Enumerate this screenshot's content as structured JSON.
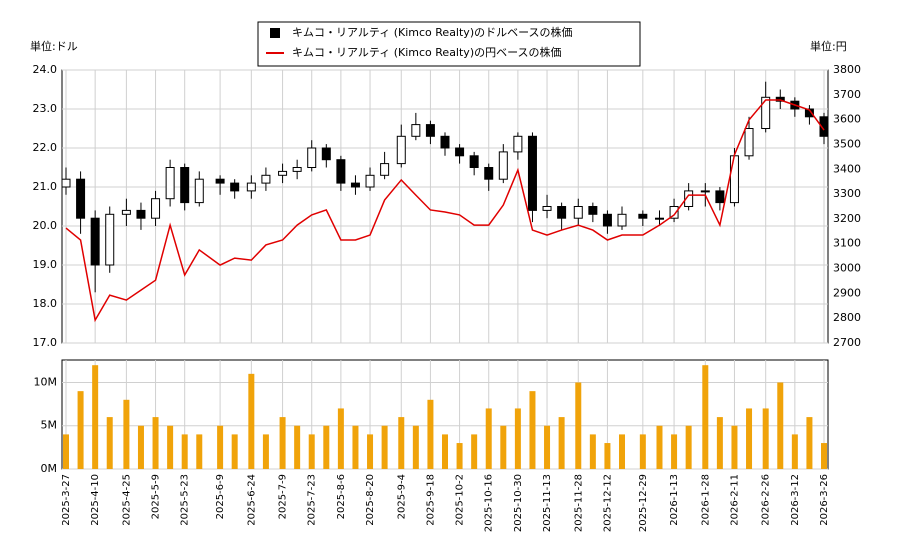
{
  "chart_data": [
    {
      "type": "candlestick",
      "y_label": "単位:ドル",
      "y2_label": "単位:円",
      "legend": "top",
      "grid": true,
      "x": [
        "2025-3-27",
        "2025-4-3",
        "2025-4-10",
        "2025-4-17",
        "2025-4-25",
        "2025-5-2",
        "2025-5-9",
        "2025-5-16",
        "2025-5-23",
        "2025-5-30",
        "2025-6-9",
        "2025-6-16",
        "2025-6-24",
        "2025-7-1",
        "2025-7-9",
        "2025-7-16",
        "2025-7-23",
        "2025-7-30",
        "2025-8-6",
        "2025-8-13",
        "2025-8-20",
        "2025-8-27",
        "2025-9-4",
        "2025-9-11",
        "2025-9-18",
        "2025-9-25",
        "2025-10-2",
        "2025-10-9",
        "2025-10-16",
        "2025-10-23",
        "2025-10-30",
        "2025-11-6",
        "2025-11-13",
        "2025-11-20",
        "2025-11-28",
        "2025-12-5",
        "2025-12-12",
        "2025-12-19",
        "2025-12-29",
        "2026-1-6",
        "2026-1-13",
        "2026-1-20",
        "2026-1-28",
        "2026-2-4",
        "2026-2-11",
        "2026-2-18",
        "2026-2-26",
        "2026-3-5",
        "2026-3-12",
        "2026-3-19",
        "2026-3-26"
      ],
      "series": [
        {
          "name": "キムコ・リアルティ (Kimco Realty)のドルベースの株価",
          "color": "#000000",
          "open": [
            21.0,
            21.2,
            20.2,
            19.0,
            20.3,
            20.4,
            20.2,
            20.7,
            21.5,
            20.6,
            21.2,
            21.1,
            20.9,
            21.1,
            21.3,
            21.4,
            21.5,
            22.0,
            21.7,
            21.1,
            21.0,
            21.3,
            21.6,
            22.3,
            22.6,
            22.3,
            22.0,
            21.8,
            21.5,
            21.2,
            21.9,
            22.3,
            20.4,
            20.5,
            20.2,
            20.5,
            20.3,
            20.0,
            20.3,
            20.2,
            20.2,
            20.5,
            20.9,
            20.9,
            20.6,
            21.8,
            22.5,
            23.3,
            23.2,
            23.0,
            22.8
          ],
          "high": [
            21.5,
            21.4,
            20.4,
            20.5,
            20.7,
            20.6,
            20.9,
            21.7,
            21.6,
            21.4,
            21.3,
            21.2,
            21.3,
            21.5,
            21.6,
            21.7,
            22.2,
            22.1,
            21.8,
            21.3,
            21.5,
            21.9,
            22.6,
            22.9,
            22.7,
            22.4,
            22.1,
            21.9,
            21.6,
            22.1,
            22.4,
            22.4,
            20.8,
            20.6,
            20.7,
            20.6,
            20.4,
            20.5,
            20.4,
            20.4,
            20.7,
            21.1,
            21.1,
            21.0,
            22.0,
            22.8,
            23.7,
            23.5,
            23.3,
            23.1,
            22.9
          ],
          "low": [
            20.8,
            19.8,
            18.3,
            18.8,
            20.0,
            19.9,
            20.0,
            20.5,
            20.4,
            20.5,
            20.8,
            20.7,
            20.7,
            20.9,
            21.1,
            21.2,
            21.4,
            21.5,
            20.9,
            20.8,
            20.9,
            21.2,
            21.5,
            22.2,
            22.1,
            21.8,
            21.6,
            21.3,
            20.9,
            21.1,
            21.7,
            20.1,
            20.2,
            19.9,
            20.0,
            20.1,
            19.8,
            19.9,
            20.0,
            20.0,
            20.1,
            20.4,
            20.5,
            20.4,
            20.5,
            21.7,
            22.4,
            23.0,
            22.8,
            22.6,
            22.1
          ],
          "close": [
            21.2,
            20.2,
            19.0,
            20.3,
            20.4,
            20.2,
            20.7,
            21.5,
            20.6,
            21.2,
            21.1,
            20.9,
            21.1,
            21.3,
            21.4,
            21.5,
            22.0,
            21.7,
            21.1,
            21.0,
            21.3,
            21.6,
            22.3,
            22.6,
            22.3,
            22.0,
            21.8,
            21.5,
            21.2,
            21.9,
            22.3,
            20.4,
            20.5,
            20.2,
            20.5,
            20.3,
            20.0,
            20.3,
            20.2,
            20.2,
            20.5,
            20.9,
            20.9,
            20.6,
            21.8,
            22.5,
            23.3,
            23.2,
            23.0,
            22.8,
            22.3
          ]
        },
        {
          "name": "キムコ・リアルティ (Kimco Realty)の円ベースの株価",
          "color": "#e00000",
          "axis": "y2",
          "values": [
            3163,
            3115,
            2792,
            2893,
            2873,
            2913,
            2953,
            3175,
            2974,
            3075,
            3014,
            3042,
            3034,
            3095,
            3115,
            3175,
            3216,
            3236,
            3115,
            3115,
            3135,
            3276,
            3357,
            3296,
            3236,
            3228,
            3216,
            3175,
            3175,
            3256,
            3397,
            3155,
            3135,
            3155,
            3175,
            3155,
            3115,
            3135,
            3135,
            3175,
            3216,
            3296,
            3296,
            3175,
            3458,
            3599,
            3679,
            3679,
            3659,
            3639,
            3558
          ]
        }
      ],
      "ylim": [
        17,
        24
      ],
      "yticks": [
        {
          "value": 17,
          "label": "17.0"
        },
        {
          "value": 18,
          "label": "18.0"
        },
        {
          "value": 19,
          "label": "19.0"
        },
        {
          "value": 20,
          "label": "20.0"
        },
        {
          "value": 21,
          "label": "21.0"
        },
        {
          "value": 22,
          "label": "22.0"
        },
        {
          "value": 23,
          "label": "23.0"
        },
        {
          "value": 24,
          "label": "24.0"
        }
      ],
      "y2lim": [
        2700,
        3800
      ],
      "y2ticks": [
        2700,
        2800,
        2900,
        3000,
        3100,
        3200,
        3300,
        3400,
        3500,
        3600,
        3700,
        3800
      ]
    },
    {
      "type": "bar",
      "color": "#f0a30a",
      "grid": true,
      "x": [
        "2025-3-27",
        "2025-4-3",
        "2025-4-10",
        "2025-4-17",
        "2025-4-25",
        "2025-5-2",
        "2025-5-9",
        "2025-5-16",
        "2025-5-23",
        "2025-5-30",
        "2025-6-9",
        "2025-6-16",
        "2025-6-24",
        "2025-7-1",
        "2025-7-9",
        "2025-7-16",
        "2025-7-23",
        "2025-7-30",
        "2025-8-6",
        "2025-8-13",
        "2025-8-20",
        "2025-8-27",
        "2025-9-4",
        "2025-9-11",
        "2025-9-18",
        "2025-9-25",
        "2025-10-2",
        "2025-10-9",
        "2025-10-16",
        "2025-10-23",
        "2025-10-30",
        "2025-11-6",
        "2025-11-13",
        "2025-11-20",
        "2025-11-28",
        "2025-12-5",
        "2025-12-12",
        "2025-12-19",
        "2025-12-29",
        "2026-1-6",
        "2026-1-13",
        "2026-1-20",
        "2026-1-28",
        "2026-2-4",
        "2026-2-11",
        "2026-2-18",
        "2026-2-26",
        "2026-3-5",
        "2026-3-12",
        "2026-3-19",
        "2026-3-26"
      ],
      "values": [
        4,
        9,
        12,
        6,
        8,
        5,
        6,
        5,
        4,
        4,
        5,
        4,
        11,
        4,
        6,
        5,
        4,
        5,
        7,
        5,
        4,
        5,
        6,
        5,
        8,
        4,
        3,
        4,
        7,
        5,
        7,
        9,
        5,
        6,
        10,
        4,
        3,
        4,
        4,
        5,
        4,
        5,
        12,
        6,
        5,
        7,
        7,
        10,
        4,
        6,
        3
      ],
      "ylim": [
        0,
        12.6
      ],
      "yticks": [
        {
          "value": 0,
          "label": "0M"
        },
        {
          "value": 5,
          "label": "5M"
        },
        {
          "value": 10,
          "label": "10M"
        }
      ],
      "xlim": [
        "2025-3-27",
        "2026-3-26"
      ],
      "xticks": [
        "2025-3-27",
        "2025-4-10",
        "2025-4-25",
        "2025-5-9",
        "2025-5-23",
        "2025-6-9",
        "2025-6-24",
        "2025-7-9",
        "2025-7-23",
        "2025-8-6",
        "2025-8-20",
        "2025-9-4",
        "2025-9-18",
        "2025-10-2",
        "2025-10-16",
        "2025-10-30",
        "2025-11-13",
        "2025-11-28",
        "2025-12-12",
        "2025-12-29",
        "2026-1-13",
        "2026-1-28",
        "2026-2-11",
        "2026-2-26",
        "2026-3-12",
        "2026-3-26"
      ]
    }
  ]
}
